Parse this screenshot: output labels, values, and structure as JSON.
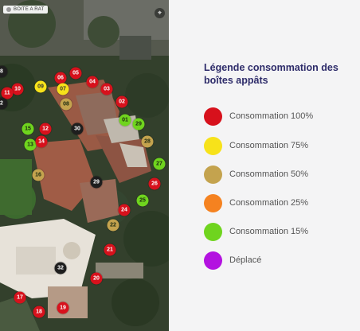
{
  "map": {
    "badge_label": "BOITE A RAT",
    "control_icon": "compass-icon",
    "markers": [
      {
        "label": "01",
        "status": "15"
      },
      {
        "label": "02",
        "status": "100"
      },
      {
        "label": "03",
        "status": "100"
      },
      {
        "label": "04",
        "status": "100"
      },
      {
        "label": "05",
        "status": "100"
      },
      {
        "label": "06",
        "status": "100"
      },
      {
        "label": "07",
        "status": "75"
      },
      {
        "label": "08",
        "status": "50"
      },
      {
        "label": "09",
        "status": "75"
      },
      {
        "label": "10",
        "status": "100"
      },
      {
        "label": "11",
        "status": "100"
      },
      {
        "label": "12",
        "status": "100"
      },
      {
        "label": "13",
        "status": "15"
      },
      {
        "label": "14",
        "status": "100"
      },
      {
        "label": "15",
        "status": "15"
      },
      {
        "label": "16",
        "status": "50"
      },
      {
        "label": "17",
        "status": "100"
      },
      {
        "label": "18",
        "status": "100"
      },
      {
        "label": "19",
        "status": "100"
      },
      {
        "label": "20",
        "status": "100"
      },
      {
        "label": "21",
        "status": "100"
      },
      {
        "label": "22",
        "status": "50"
      },
      {
        "label": "24",
        "status": "100"
      },
      {
        "label": "25",
        "status": "15"
      },
      {
        "label": "26",
        "status": "100"
      },
      {
        "label": "27",
        "status": "15"
      },
      {
        "label": "28",
        "status": "50"
      },
      {
        "label": "29",
        "status": "15"
      },
      {
        "label": "29",
        "status": "none"
      },
      {
        "label": "30",
        "status": "none"
      },
      {
        "label": "32",
        "status": "none"
      },
      {
        "label": "2",
        "status": "none"
      },
      {
        "label": "8",
        "status": "none"
      }
    ]
  },
  "legend": {
    "title": "Légende consommation des boîtes appâts",
    "items": [
      {
        "key": "100",
        "label": "Consommation 100%",
        "color": "#d7111c"
      },
      {
        "key": "75",
        "label": "Consommation 75%",
        "color": "#f7e21a"
      },
      {
        "key": "50",
        "label": "Consommation 50%",
        "color": "#c4a34e"
      },
      {
        "key": "25",
        "label": "Consommation 25%",
        "color": "#f58220"
      },
      {
        "key": "15",
        "label": "Consommation 15%",
        "color": "#6fd41e"
      },
      {
        "key": "moved",
        "label": "Déplacé",
        "color": "#b312e0"
      }
    ],
    "none_color": "#1e1e1e"
  }
}
